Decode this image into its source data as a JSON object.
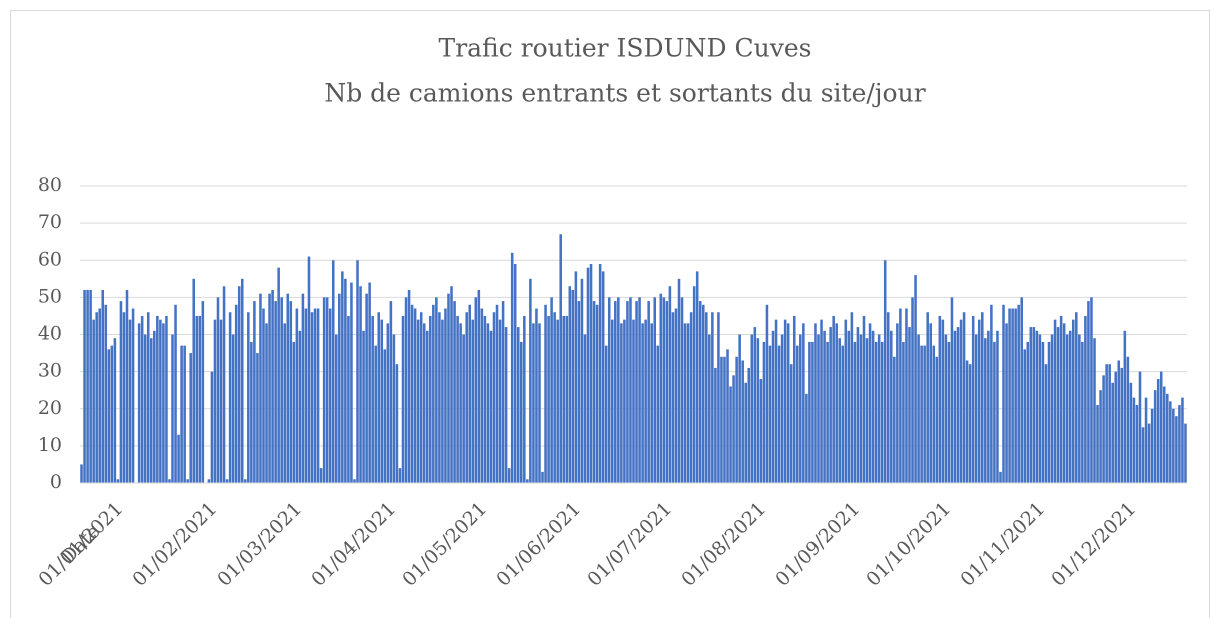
{
  "chart_data": {
    "type": "bar",
    "title": "Trafic routier ISDUND Cuves",
    "subtitle": "Nb de camions entrants et sortants du site/jour",
    "x_label": "Date",
    "color": "#4472c4",
    "grid": true,
    "ylim": [
      0,
      80
    ],
    "yticks": [
      0,
      10,
      20,
      30,
      40,
      50,
      60,
      70,
      80
    ],
    "categories": [
      "01/01/2021",
      null,
      null,
      null,
      null,
      null,
      null,
      null,
      null,
      null,
      null,
      null,
      null,
      null,
      null,
      null,
      null,
      null,
      null,
      null,
      null,
      null,
      null,
      null,
      null,
      null,
      null,
      null,
      null,
      null,
      null,
      "01/02/2021",
      null,
      null,
      null,
      null,
      null,
      null,
      null,
      null,
      null,
      null,
      null,
      null,
      null,
      null,
      null,
      null,
      null,
      null,
      null,
      null,
      null,
      null,
      null,
      null,
      null,
      null,
      null,
      "01/03/2021",
      null,
      null,
      null,
      null,
      null,
      null,
      null,
      null,
      null,
      null,
      null,
      null,
      null,
      null,
      null,
      null,
      null,
      null,
      null,
      null,
      null,
      null,
      null,
      null,
      null,
      null,
      null,
      null,
      null,
      null,
      "01/04/2021",
      null,
      null,
      null,
      null,
      null,
      null,
      null,
      null,
      null,
      null,
      null,
      null,
      null,
      null,
      null,
      null,
      null,
      null,
      null,
      null,
      null,
      null,
      null,
      null,
      null,
      null,
      null,
      null,
      null,
      "01/05/2021",
      null,
      null,
      null,
      null,
      null,
      null,
      null,
      null,
      null,
      null,
      null,
      null,
      null,
      null,
      null,
      null,
      null,
      null,
      null,
      null,
      null,
      null,
      null,
      null,
      null,
      null,
      null,
      null,
      null,
      null,
      "01/06/2021",
      null,
      null,
      null,
      null,
      null,
      null,
      null,
      null,
      null,
      null,
      null,
      null,
      null,
      null,
      null,
      null,
      null,
      null,
      null,
      null,
      null,
      null,
      null,
      null,
      null,
      null,
      null,
      null,
      null,
      "01/07/2021",
      null,
      null,
      null,
      null,
      null,
      null,
      null,
      null,
      null,
      null,
      null,
      null,
      null,
      null,
      null,
      null,
      null,
      null,
      null,
      null,
      null,
      null,
      null,
      null,
      null,
      null,
      null,
      null,
      null,
      null,
      "01/08/2021",
      null,
      null,
      null,
      null,
      null,
      null,
      null,
      null,
      null,
      null,
      null,
      null,
      null,
      null,
      null,
      null,
      null,
      null,
      null,
      null,
      null,
      null,
      null,
      null,
      null,
      null,
      null,
      null,
      null,
      null,
      "01/09/2021",
      null,
      null,
      null,
      null,
      null,
      null,
      null,
      null,
      null,
      null,
      null,
      null,
      null,
      null,
      null,
      null,
      null,
      null,
      null,
      null,
      null,
      null,
      null,
      null,
      null,
      null,
      null,
      null,
      null,
      "01/10/2021",
      null,
      null,
      null,
      null,
      null,
      null,
      null,
      null,
      null,
      null,
      null,
      null,
      null,
      null,
      null,
      null,
      null,
      null,
      null,
      null,
      null,
      null,
      null,
      null,
      null,
      null,
      null,
      null,
      null,
      null,
      "01/11/2021",
      null,
      null,
      null,
      null,
      null,
      null,
      null,
      null,
      null,
      null,
      null,
      null,
      null,
      null,
      null,
      null,
      null,
      null,
      null,
      null,
      null,
      null,
      null,
      null,
      null,
      null,
      null,
      null,
      null,
      "01/12/2021",
      null,
      null,
      null,
      null,
      null,
      null,
      null,
      null,
      null,
      null,
      null,
      null,
      null,
      null,
      null,
      null,
      null,
      null,
      null,
      null,
      null,
      null,
      null,
      null,
      null,
      null,
      null,
      null,
      null,
      null
    ],
    "values": [
      5,
      52,
      52,
      52,
      44,
      46,
      47,
      52,
      48,
      36,
      37,
      39,
      1,
      49,
      46,
      52,
      44,
      47,
      0,
      43,
      45,
      40,
      46,
      39,
      41,
      45,
      44,
      43,
      45,
      1,
      40,
      48,
      13,
      37,
      37,
      1,
      35,
      55,
      45,
      45,
      49,
      0,
      1,
      30,
      44,
      50,
      44,
      53,
      1,
      46,
      40,
      48,
      53,
      55,
      1,
      46,
      38,
      49,
      35,
      51,
      47,
      43,
      51,
      52,
      49,
      58,
      50,
      43,
      51,
      49,
      38,
      47,
      41,
      51,
      47,
      61,
      46,
      47,
      47,
      4,
      50,
      50,
      47,
      60,
      40,
      51,
      57,
      55,
      45,
      54,
      1,
      60,
      53,
      41,
      51,
      54,
      45,
      37,
      46,
      44,
      36,
      43,
      49,
      40,
      32,
      4,
      45,
      50,
      52,
      48,
      47,
      44,
      46,
      43,
      41,
      45,
      48,
      50,
      46,
      44,
      47,
      51,
      53,
      49,
      45,
      43,
      40,
      46,
      48,
      44,
      50,
      52,
      47,
      45,
      43,
      41,
      46,
      48,
      44,
      49,
      42,
      4,
      62,
      59,
      42,
      38,
      45,
      1,
      55,
      43,
      47,
      43,
      3,
      48,
      45,
      50,
      46,
      44,
      67,
      45,
      45,
      53,
      52,
      57,
      49,
      55,
      40,
      58,
      59,
      49,
      48,
      59,
      57,
      37,
      50,
      44,
      49,
      50,
      43,
      44,
      49,
      50,
      44,
      49,
      50,
      43,
      44,
      49,
      43,
      50,
      37,
      51,
      50,
      49,
      53,
      46,
      47,
      55,
      50,
      43,
      43,
      46,
      53,
      57,
      49,
      48,
      46,
      40,
      46,
      31,
      46,
      34,
      34,
      36,
      26,
      29,
      34,
      40,
      33,
      27,
      31,
      40,
      42,
      39,
      28,
      38,
      48,
      37,
      41,
      44,
      37,
      40,
      44,
      43,
      32,
      45,
      37,
      40,
      43,
      24,
      38,
      38,
      43,
      40,
      44,
      41,
      38,
      42,
      45,
      43,
      39,
      37,
      44,
      41,
      46,
      38,
      42,
      40,
      45,
      39,
      43,
      41,
      38,
      40,
      38,
      60,
      46,
      41,
      34,
      43,
      47,
      38,
      47,
      42,
      50,
      56,
      40,
      37,
      37,
      46,
      43,
      37,
      34,
      45,
      44,
      40,
      38,
      50,
      41,
      42,
      44,
      46,
      33,
      32,
      45,
      40,
      44,
      46,
      39,
      41,
      48,
      38,
      41,
      3,
      48,
      43,
      47,
      47,
      47,
      48,
      50,
      36,
      38,
      42,
      42,
      41,
      40,
      38,
      32,
      38,
      40,
      44,
      42,
      45,
      43,
      40,
      41,
      44,
      46,
      40,
      38,
      45,
      49,
      50,
      39,
      21,
      25,
      29,
      32,
      32,
      27,
      30,
      33,
      31,
      41,
      34,
      27,
      23,
      21,
      30,
      15,
      23,
      16,
      20,
      25,
      28,
      30,
      26,
      24,
      22,
      20,
      18,
      21,
      23,
      16
    ]
  }
}
